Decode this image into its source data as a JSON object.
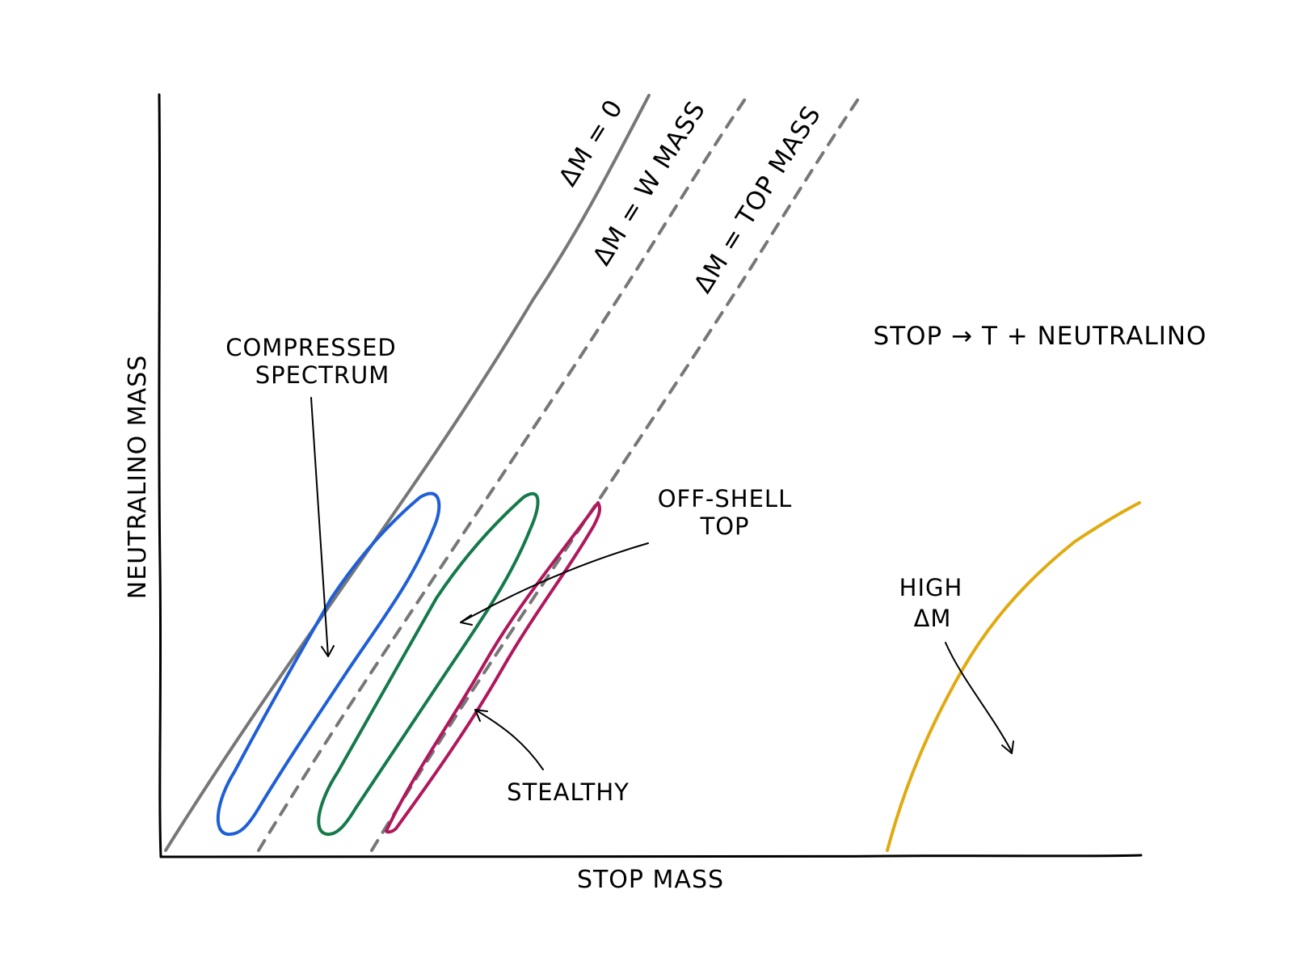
{
  "axes": {
    "x_label": "STOP MASS",
    "y_label": "NEUTRALINO MASS"
  },
  "decay_label": "STOP → T + NEUTRALINO",
  "lines": {
    "dm_zero": {
      "label": "ΔM = 0",
      "color": "#777777",
      "style": "solid"
    },
    "dm_w": {
      "label": "ΔM = W MASS",
      "color": "#777777",
      "style": "dashed"
    },
    "dm_top": {
      "label": "ΔM = TOP MASS",
      "color": "#777777",
      "style": "dashed"
    }
  },
  "regions": {
    "compressed": {
      "label_line1": "COMPRESSED",
      "label_line2": "SPECTRUM",
      "color": "#1f5fd6"
    },
    "offshell": {
      "label_line1": "OFF-SHELL",
      "label_line2": "TOP",
      "color": "#157a4a"
    },
    "stealthy": {
      "label": "STEALTHY",
      "color": "#b0185c"
    },
    "high_dm": {
      "label_line1": "HIGH",
      "label_line2": "ΔM",
      "color": "#e0aa10"
    }
  }
}
